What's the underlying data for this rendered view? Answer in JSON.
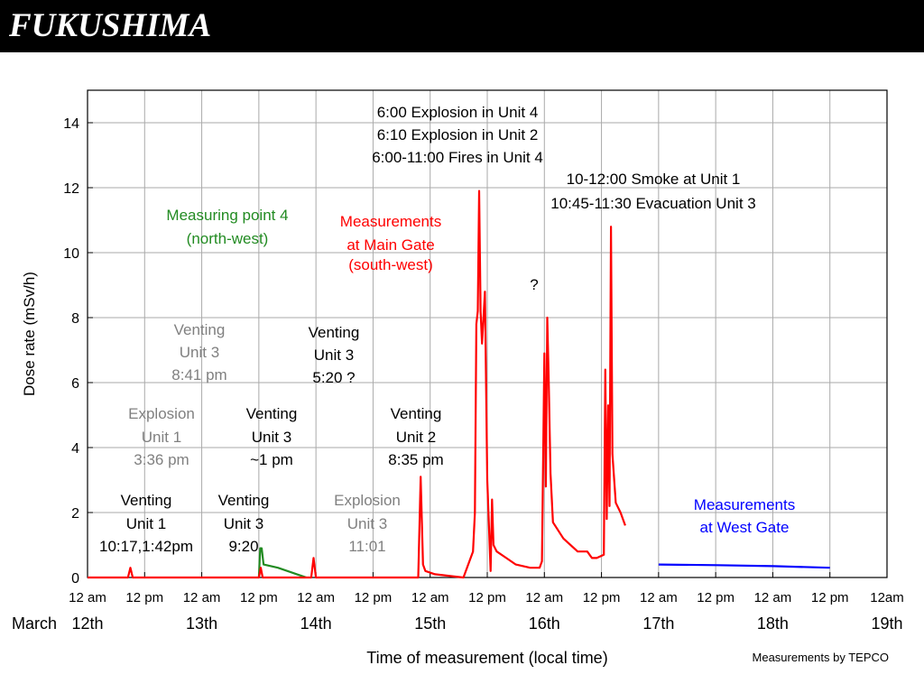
{
  "slide": {
    "title": "FUKUSHIMA"
  },
  "chart_data": {
    "type": "line",
    "ylabel": "Dose rate (mSv/h)",
    "xlabel": "Time of measurement (local time)",
    "credit": "Measurements by TEPCO",
    "ylim": [
      0,
      15
    ],
    "yticks": [
      0,
      2,
      4,
      6,
      8,
      10,
      12,
      14
    ],
    "xlim_hours": [
      0,
      168
    ],
    "xtick_labels": [
      "12 am",
      "12 pm",
      "12 am",
      "12 pm",
      "12 am",
      "12 pm",
      "12 am",
      "12 pm",
      "12 am",
      "12 pm",
      "12 am",
      "12 pm",
      "12 am",
      "12 pm",
      "12am"
    ],
    "month_label": "March",
    "day_labels": [
      "12th",
      "13th",
      "14th",
      "15th",
      "16th",
      "17th",
      "18th",
      "19th"
    ],
    "grid": true,
    "x_units": "hours since March 12th 12 am",
    "series": [
      {
        "name": "Measuring point 4 (north-west)",
        "color": "#228b22",
        "points": [
          [
            36,
            0
          ],
          [
            36.3,
            0.9
          ],
          [
            36.6,
            0.9
          ],
          [
            37,
            0.4
          ],
          [
            40,
            0.3
          ],
          [
            44,
            0.1
          ],
          [
            46,
            0
          ]
        ]
      },
      {
        "name": "Measurements at Main Gate (south-west)",
        "color": "#ff0000",
        "points": [
          [
            0,
            0
          ],
          [
            8.5,
            0
          ],
          [
            9,
            0.3
          ],
          [
            9.5,
            0
          ],
          [
            36,
            0
          ],
          [
            36.4,
            0.3
          ],
          [
            36.8,
            0
          ],
          [
            44,
            0
          ],
          [
            47,
            0
          ],
          [
            47.5,
            0.6
          ],
          [
            48,
            0
          ],
          [
            69.5,
            0
          ],
          [
            70,
            3.1
          ],
          [
            70.5,
            0.4
          ],
          [
            71,
            0.2
          ],
          [
            73,
            0.1
          ],
          [
            79,
            0
          ],
          [
            81,
            0.8
          ],
          [
            81.4,
            2
          ],
          [
            81.7,
            7.8
          ],
          [
            82,
            8.2
          ],
          [
            82.3,
            11.9
          ],
          [
            82.6,
            8.2
          ],
          [
            82.9,
            7.2
          ],
          [
            83.2,
            8.0
          ],
          [
            83.5,
            8.8
          ],
          [
            84,
            3
          ],
          [
            84.7,
            0.2
          ],
          [
            85,
            2.4
          ],
          [
            85.3,
            1
          ],
          [
            86,
            0.8
          ],
          [
            88,
            0.6
          ],
          [
            90,
            0.4
          ],
          [
            93,
            0.3
          ],
          [
            95,
            0.3
          ],
          [
            95.5,
            0.5
          ],
          [
            96,
            6.9
          ],
          [
            96.3,
            2.8
          ],
          [
            96.6,
            8.0
          ],
          [
            96.9,
            6.2
          ],
          [
            97.3,
            3.2
          ],
          [
            97.8,
            1.7
          ],
          [
            100,
            1.2
          ],
          [
            103,
            0.8
          ],
          [
            105,
            0.8
          ],
          [
            106,
            0.6
          ],
          [
            107,
            0.6
          ],
          [
            108.5,
            0.7
          ],
          [
            108.8,
            6.4
          ],
          [
            109.1,
            1.8
          ],
          [
            109.4,
            5.3
          ],
          [
            109.7,
            2.2
          ],
          [
            110,
            10.8
          ],
          [
            110.3,
            3.8
          ],
          [
            111,
            2.3
          ],
          [
            112,
            2.0
          ],
          [
            113,
            1.6
          ]
        ]
      },
      {
        "name": "Measurements at West Gate",
        "color": "#0000ff",
        "points": [
          [
            120,
            0.4
          ],
          [
            132,
            0.38
          ],
          [
            144,
            0.35
          ],
          [
            156,
            0.3
          ]
        ]
      }
    ],
    "annotations": [
      {
        "text": "Measuring point 4",
        "color": "#228b22"
      },
      {
        "text": "(north-west)",
        "color": "#228b22"
      },
      {
        "text": "Measurements",
        "color": "#ff0000"
      },
      {
        "text": "at Main Gate",
        "color": "#ff0000"
      },
      {
        "text": "(south-west)",
        "color": "#ff0000"
      },
      {
        "text": "Measurements",
        "color": "#0000ff"
      },
      {
        "text": "at West Gate",
        "color": "#0000ff"
      },
      {
        "text": "6:00 Explosion in Unit 4",
        "color": "#000000"
      },
      {
        "text": "6:10 Explosion in Unit 2",
        "color": "#000000"
      },
      {
        "text": "6:00-11:00 Fires in Unit 4",
        "color": "#000000"
      },
      {
        "text": "10-12:00 Smoke at Unit 1",
        "color": "#000000"
      },
      {
        "text": "10:45-11:30 Evacuation Unit 3",
        "color": "#000000"
      },
      {
        "text": "?",
        "color": "#000000"
      },
      {
        "text": "Venting",
        "color": "#808080"
      },
      {
        "text": "Unit 3",
        "color": "#808080"
      },
      {
        "text": "8:41 pm",
        "color": "#808080"
      },
      {
        "text": "Venting",
        "color": "#000000"
      },
      {
        "text": "Unit 3",
        "color": "#000000"
      },
      {
        "text": "5:20 ?",
        "color": "#000000"
      },
      {
        "text": "Explosion",
        "color": "#808080"
      },
      {
        "text": "Unit 1",
        "color": "#808080"
      },
      {
        "text": "3:36 pm",
        "color": "#808080"
      },
      {
        "text": "Venting",
        "color": "#000000"
      },
      {
        "text": "Unit 3",
        "color": "#000000"
      },
      {
        "text": "~1 pm",
        "color": "#000000"
      },
      {
        "text": "Venting",
        "color": "#000000"
      },
      {
        "text": "Unit 2",
        "color": "#000000"
      },
      {
        "text": "8:35 pm",
        "color": "#000000"
      },
      {
        "text": "Venting",
        "color": "#000000"
      },
      {
        "text": "Unit 1",
        "color": "#000000"
      },
      {
        "text": "10:17,1:42pm",
        "color": "#000000"
      },
      {
        "text": "Venting",
        "color": "#000000"
      },
      {
        "text": "Unit 3",
        "color": "#000000"
      },
      {
        "text": "9:20",
        "color": "#000000"
      },
      {
        "text": "Explosion",
        "color": "#808080"
      },
      {
        "text": "Unit 3",
        "color": "#808080"
      },
      {
        "text": "11:01",
        "color": "#808080"
      }
    ]
  }
}
